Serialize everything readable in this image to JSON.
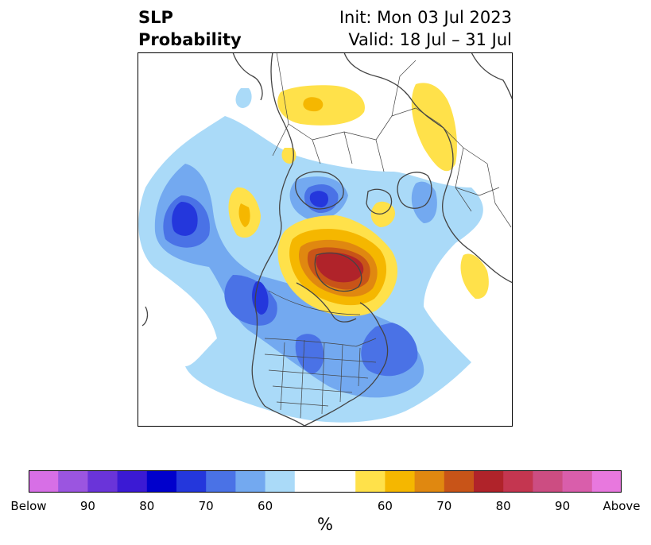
{
  "header": {
    "variable": "SLP",
    "field": "Probability",
    "init": "Init: Mon 03 Jul 2023",
    "valid": "Valid: 18 Jul – 31 Jul"
  },
  "colorbar": {
    "units": "%",
    "tick_labels": [
      "Below",
      "90",
      "80",
      "70",
      "60",
      "60",
      "70",
      "80",
      "90",
      "Above"
    ],
    "below_colors": [
      "#d76fe6",
      "#9b55e0",
      "#6a34d9",
      "#3b1ad4",
      "#0000cc",
      "#2437dc",
      "#4a72e6",
      "#73a9f0",
      "#aadaf8"
    ],
    "neutral_color": "#ffffff",
    "above_colors": [
      "#ffe14a",
      "#f5b700",
      "#e08810",
      "#c85418",
      "#b0232a",
      "#c43650",
      "#cc4d82",
      "#d95eab",
      "#e878de"
    ]
  },
  "map": {
    "land_color": "#ffffff",
    "border_color": "#444444"
  }
}
